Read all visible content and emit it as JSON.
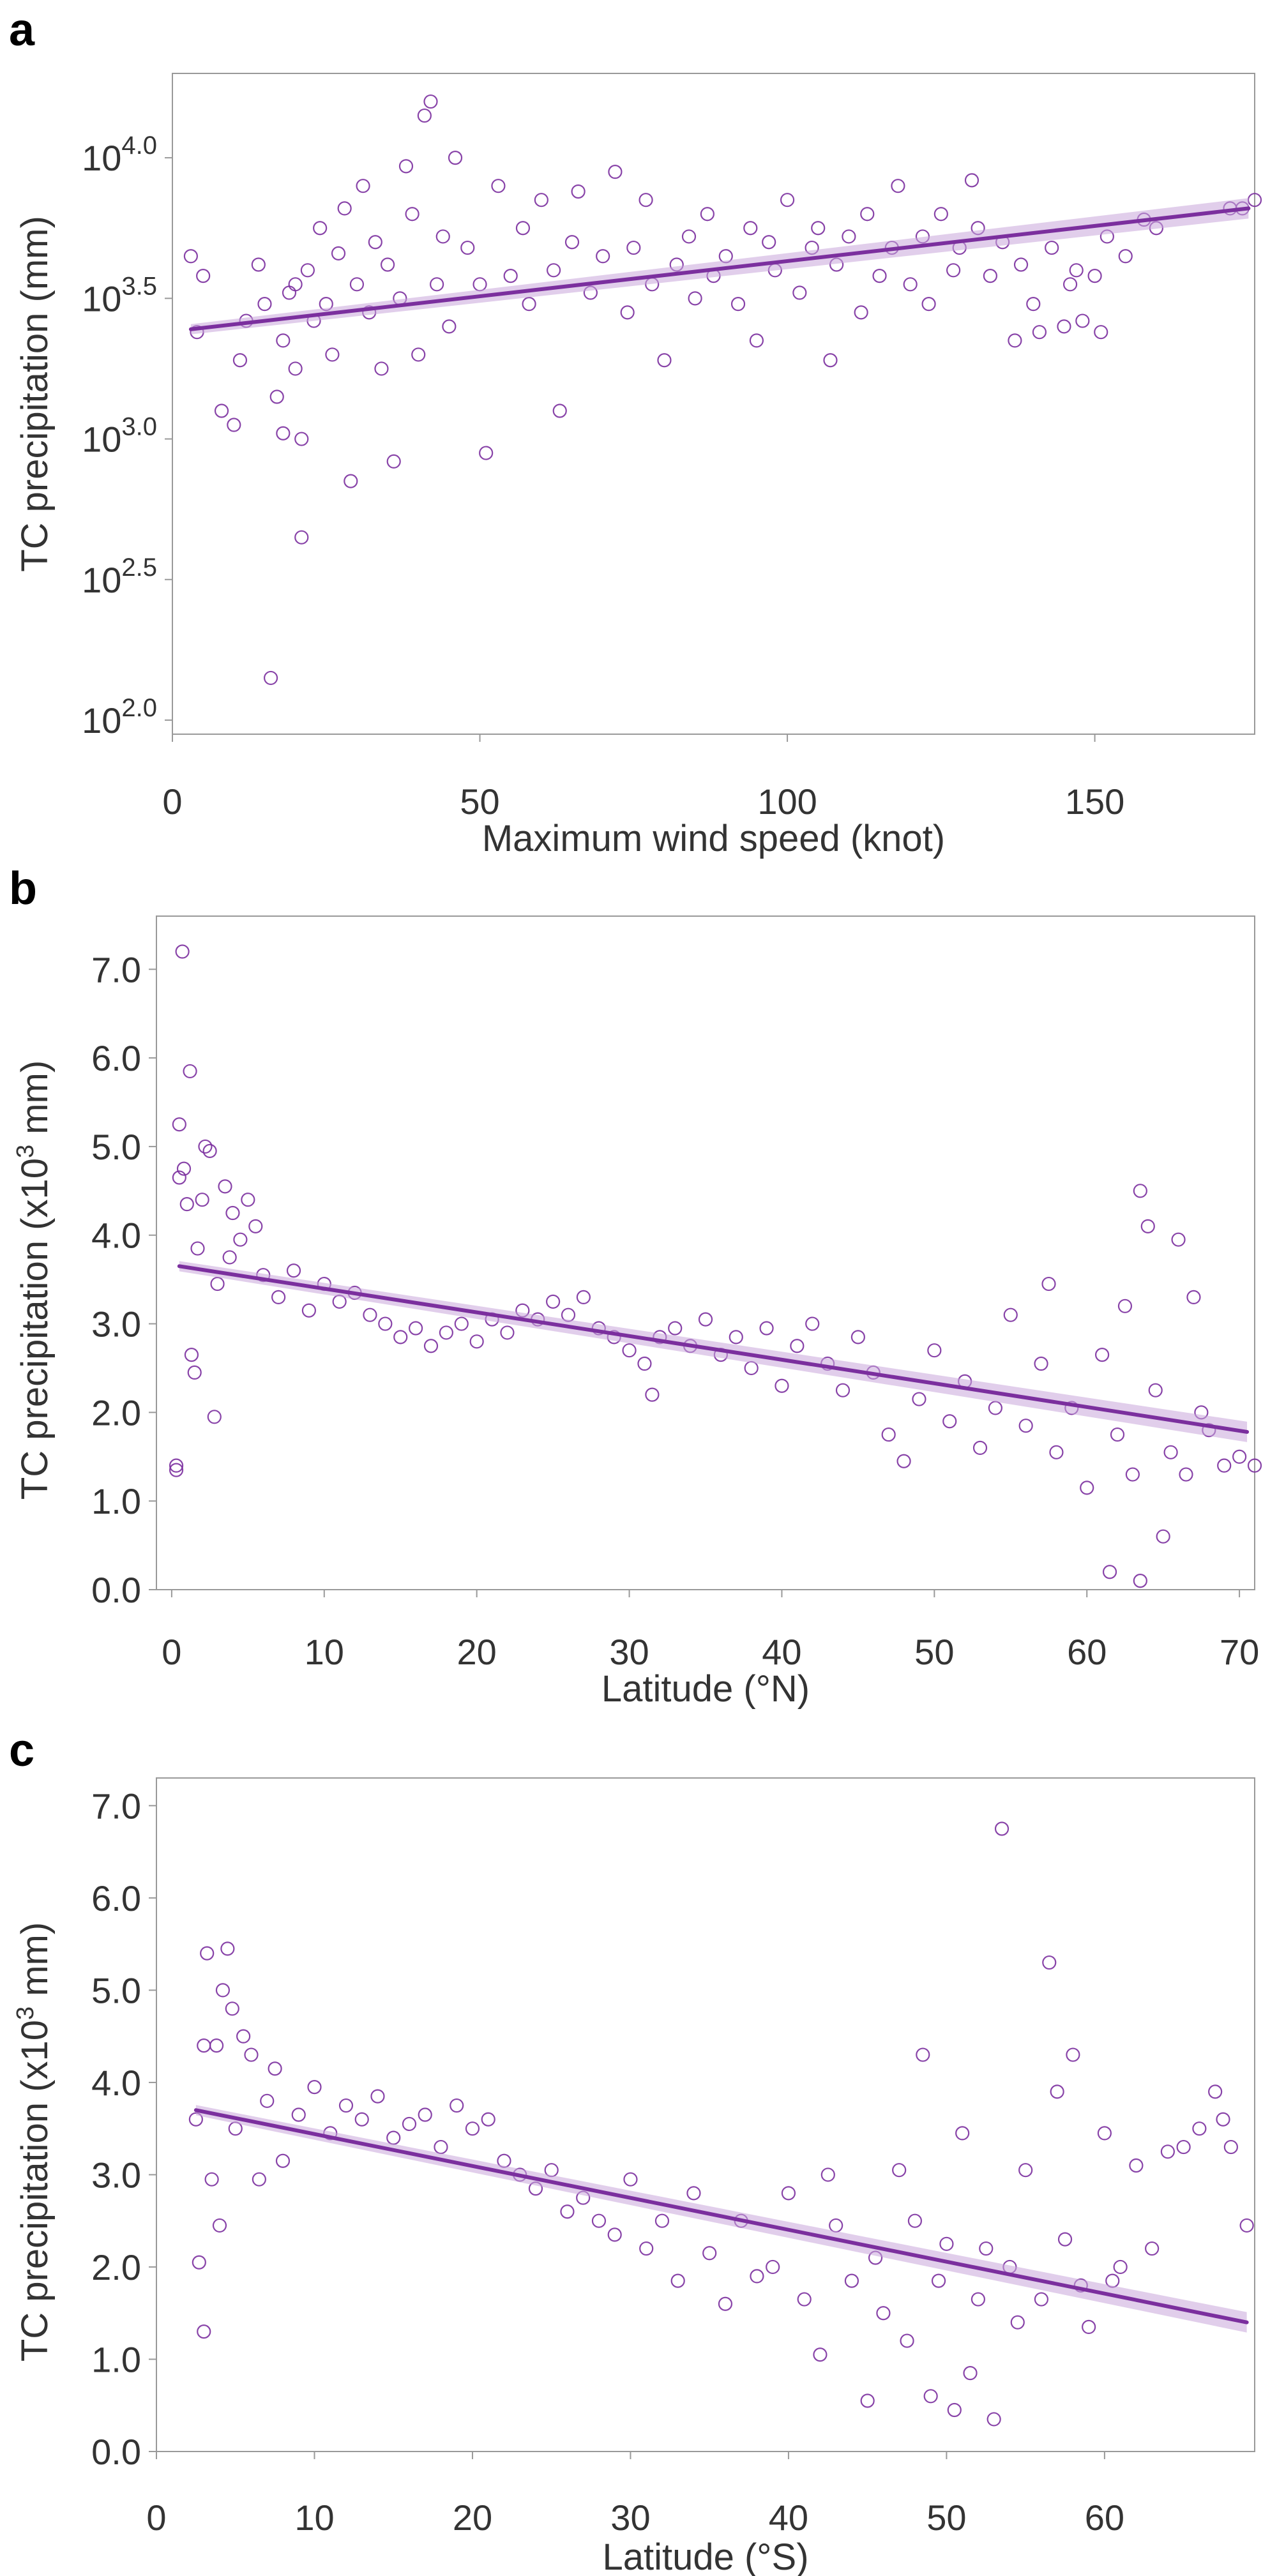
{
  "colors": {
    "accent": "#7B2F9E",
    "band": "#C9A6DA",
    "axis": "#999999",
    "text": "#333333"
  },
  "panels": [
    {
      "letter": "a"
    },
    {
      "letter": "b"
    },
    {
      "letter": "c"
    }
  ],
  "chart_data": [
    {
      "type": "scatter",
      "xlabel": "Maximum wind speed (knot)",
      "ylabel": "TC precipitation (mm)",
      "log_y": true,
      "xlim": [
        0,
        176
      ],
      "ylim": [
        1.95,
        4.3
      ],
      "xticks": [
        0,
        50,
        100,
        150
      ],
      "yticks": [
        2.0,
        2.5,
        3.0,
        3.5,
        4.0
      ],
      "ytick_labels": [
        "2.0",
        "2.5",
        "3.0",
        "3.5",
        "4.0"
      ],
      "grid": false,
      "trend_line": {
        "x": [
          3,
          175
        ],
        "y": [
          3.39,
          3.82
        ]
      },
      "points": [
        [
          3,
          3.65
        ],
        [
          4,
          3.38
        ],
        [
          5,
          3.58
        ],
        [
          8,
          3.1
        ],
        [
          10,
          3.05
        ],
        [
          11,
          3.28
        ],
        [
          12,
          3.42
        ],
        [
          14,
          3.62
        ],
        [
          15,
          3.48
        ],
        [
          16,
          2.15
        ],
        [
          17,
          3.15
        ],
        [
          18,
          3.35
        ],
        [
          18,
          3.02
        ],
        [
          19,
          3.52
        ],
        [
          20,
          3.25
        ],
        [
          20,
          3.55
        ],
        [
          21,
          2.65
        ],
        [
          21,
          3.0
        ],
        [
          22,
          3.6
        ],
        [
          23,
          3.42
        ],
        [
          24,
          3.75
        ],
        [
          25,
          3.48
        ],
        [
          26,
          3.3
        ],
        [
          27,
          3.66
        ],
        [
          28,
          3.82
        ],
        [
          29,
          2.85
        ],
        [
          30,
          3.55
        ],
        [
          31,
          3.9
        ],
        [
          32,
          3.45
        ],
        [
          33,
          3.7
        ],
        [
          34,
          3.25
        ],
        [
          35,
          3.62
        ],
        [
          36,
          2.92
        ],
        [
          37,
          3.5
        ],
        [
          38,
          3.97
        ],
        [
          39,
          3.8
        ],
        [
          40,
          3.3
        ],
        [
          41,
          4.15
        ],
        [
          42,
          4.2
        ],
        [
          43,
          3.55
        ],
        [
          44,
          3.72
        ],
        [
          45,
          3.4
        ],
        [
          46,
          4.0
        ],
        [
          48,
          3.68
        ],
        [
          50,
          3.55
        ],
        [
          51,
          2.95
        ],
        [
          53,
          3.9
        ],
        [
          55,
          3.58
        ],
        [
          57,
          3.75
        ],
        [
          58,
          3.48
        ],
        [
          60,
          3.85
        ],
        [
          62,
          3.6
        ],
        [
          63,
          3.1
        ],
        [
          65,
          3.7
        ],
        [
          66,
          3.88
        ],
        [
          68,
          3.52
        ],
        [
          70,
          3.65
        ],
        [
          72,
          3.95
        ],
        [
          74,
          3.45
        ],
        [
          75,
          3.68
        ],
        [
          77,
          3.85
        ],
        [
          78,
          3.55
        ],
        [
          80,
          3.28
        ],
        [
          82,
          3.62
        ],
        [
          84,
          3.72
        ],
        [
          85,
          3.5
        ],
        [
          87,
          3.8
        ],
        [
          88,
          3.58
        ],
        [
          90,
          3.65
        ],
        [
          92,
          3.48
        ],
        [
          94,
          3.75
        ],
        [
          95,
          3.35
        ],
        [
          97,
          3.7
        ],
        [
          98,
          3.6
        ],
        [
          100,
          3.85
        ],
        [
          102,
          3.52
        ],
        [
          104,
          3.68
        ],
        [
          105,
          3.75
        ],
        [
          107,
          3.28
        ],
        [
          108,
          3.62
        ],
        [
          110,
          3.72
        ],
        [
          112,
          3.45
        ],
        [
          113,
          3.8
        ],
        [
          115,
          3.58
        ],
        [
          117,
          3.68
        ],
        [
          118,
          3.9
        ],
        [
          120,
          3.55
        ],
        [
          122,
          3.72
        ],
        [
          123,
          3.48
        ],
        [
          125,
          3.8
        ],
        [
          127,
          3.6
        ],
        [
          128,
          3.68
        ],
        [
          130,
          3.92
        ],
        [
          131,
          3.75
        ],
        [
          133,
          3.58
        ],
        [
          135,
          3.7
        ],
        [
          137,
          3.35
        ],
        [
          138,
          3.62
        ],
        [
          140,
          3.48
        ],
        [
          141,
          3.38
        ],
        [
          143,
          3.68
        ],
        [
          145,
          3.4
        ],
        [
          146,
          3.55
        ],
        [
          147,
          3.6
        ],
        [
          148,
          3.42
        ],
        [
          150,
          3.58
        ],
        [
          151,
          3.38
        ],
        [
          152,
          3.72
        ],
        [
          155,
          3.65
        ],
        [
          158,
          3.78
        ],
        [
          160,
          3.75
        ],
        [
          172,
          3.82
        ],
        [
          174,
          3.82
        ],
        [
          176,
          3.85
        ]
      ]
    },
    {
      "type": "scatter",
      "xlabel": "Latitude (°N)",
      "ylabel": "TC precipitation (x10³ mm)",
      "xlim": [
        -1,
        71
      ],
      "ylim": [
        0,
        7.6
      ],
      "xticks": [
        0,
        10,
        20,
        30,
        40,
        50,
        60,
        70
      ],
      "yticks": [
        0,
        1,
        2,
        3,
        4,
        5,
        6,
        7
      ],
      "ytick_labels": [
        "0.0",
        "1.0",
        "2.0",
        "3.0",
        "4.0",
        "5.0",
        "6.0",
        "7.0"
      ],
      "grid": false,
      "trend_line": {
        "x": [
          0.5,
          70.5
        ],
        "y": [
          3.65,
          1.78
        ]
      },
      "points": [
        [
          0.3,
          1.35
        ],
        [
          0.3,
          1.4
        ],
        [
          0.5,
          5.25
        ],
        [
          0.5,
          4.65
        ],
        [
          0.7,
          7.2
        ],
        [
          0.8,
          4.75
        ],
        [
          1,
          4.35
        ],
        [
          1.2,
          5.85
        ],
        [
          1.3,
          2.65
        ],
        [
          1.5,
          2.45
        ],
        [
          1.7,
          3.85
        ],
        [
          2,
          4.4
        ],
        [
          2.2,
          5.0
        ],
        [
          2.5,
          4.95
        ],
        [
          2.8,
          1.95
        ],
        [
          3,
          3.45
        ],
        [
          3.5,
          4.55
        ],
        [
          3.8,
          3.75
        ],
        [
          4,
          4.25
        ],
        [
          4.5,
          3.95
        ],
        [
          5,
          4.4
        ],
        [
          5.5,
          4.1
        ],
        [
          6,
          3.55
        ],
        [
          7,
          3.3
        ],
        [
          8,
          3.6
        ],
        [
          9,
          3.15
        ],
        [
          10,
          3.45
        ],
        [
          11,
          3.25
        ],
        [
          12,
          3.35
        ],
        [
          13,
          3.1
        ],
        [
          14,
          3.0
        ],
        [
          15,
          2.85
        ],
        [
          16,
          2.95
        ],
        [
          17,
          2.75
        ],
        [
          18,
          2.9
        ],
        [
          19,
          3.0
        ],
        [
          20,
          2.8
        ],
        [
          21,
          3.05
        ],
        [
          22,
          2.9
        ],
        [
          23,
          3.15
        ],
        [
          24,
          3.05
        ],
        [
          25,
          3.25
        ],
        [
          26,
          3.1
        ],
        [
          27,
          3.3
        ],
        [
          28,
          2.95
        ],
        [
          29,
          2.85
        ],
        [
          30,
          2.7
        ],
        [
          31,
          2.55
        ],
        [
          31.5,
          2.2
        ],
        [
          32,
          2.85
        ],
        [
          33,
          2.95
        ],
        [
          34,
          2.75
        ],
        [
          35,
          3.05
        ],
        [
          36,
          2.65
        ],
        [
          37,
          2.85
        ],
        [
          38,
          2.5
        ],
        [
          39,
          2.95
        ],
        [
          40,
          2.3
        ],
        [
          41,
          2.75
        ],
        [
          42,
          3.0
        ],
        [
          43,
          2.55
        ],
        [
          44,
          2.25
        ],
        [
          45,
          2.85
        ],
        [
          46,
          2.45
        ],
        [
          47,
          1.75
        ],
        [
          48,
          1.45
        ],
        [
          49,
          2.15
        ],
        [
          50,
          2.7
        ],
        [
          51,
          1.9
        ],
        [
          52,
          2.35
        ],
        [
          53,
          1.6
        ],
        [
          54,
          2.05
        ],
        [
          55,
          3.1
        ],
        [
          56,
          1.85
        ],
        [
          57,
          2.55
        ],
        [
          57.5,
          3.45
        ],
        [
          58,
          1.55
        ],
        [
          59,
          2.05
        ],
        [
          60,
          1.15
        ],
        [
          61,
          2.65
        ],
        [
          61.5,
          0.2
        ],
        [
          62,
          1.75
        ],
        [
          62.5,
          3.2
        ],
        [
          63,
          1.3
        ],
        [
          63.5,
          0.1
        ],
        [
          63.5,
          4.5
        ],
        [
          64,
          4.1
        ],
        [
          64.5,
          2.25
        ],
        [
          65,
          0.6
        ],
        [
          65.5,
          1.55
        ],
        [
          66,
          3.95
        ],
        [
          66.5,
          1.3
        ],
        [
          67,
          3.3
        ],
        [
          67.5,
          2.0
        ],
        [
          68,
          1.8
        ],
        [
          69,
          1.4
        ],
        [
          70,
          1.5
        ],
        [
          71,
          1.4
        ]
      ]
    },
    {
      "type": "scatter",
      "xlabel": "Latitude (°S)",
      "ylabel": "TC precipitation (x10³ mm)",
      "xlim": [
        0,
        69.5
      ],
      "ylim": [
        0,
        7.3
      ],
      "xticks": [
        0,
        10,
        20,
        30,
        40,
        50,
        60
      ],
      "yticks": [
        0,
        1,
        2,
        3,
        4,
        5,
        6,
        7
      ],
      "ytick_labels": [
        "0.0",
        "1.0",
        "2.0",
        "3.0",
        "4.0",
        "5.0",
        "6.0",
        "7.0"
      ],
      "grid": false,
      "trend_line": {
        "x": [
          2.5,
          69
        ],
        "y": [
          3.7,
          1.4
        ]
      },
      "points": [
        [
          2.5,
          3.6
        ],
        [
          2.7,
          2.05
        ],
        [
          3,
          1.3
        ],
        [
          3,
          4.4
        ],
        [
          3.2,
          5.4
        ],
        [
          3.5,
          2.95
        ],
        [
          3.8,
          4.4
        ],
        [
          4,
          2.45
        ],
        [
          4.2,
          5.0
        ],
        [
          4.5,
          5.45
        ],
        [
          4.8,
          4.8
        ],
        [
          5,
          3.5
        ],
        [
          5.5,
          4.5
        ],
        [
          6,
          4.3
        ],
        [
          6.5,
          2.95
        ],
        [
          7,
          3.8
        ],
        [
          7.5,
          4.15
        ],
        [
          8,
          3.15
        ],
        [
          9,
          3.65
        ],
        [
          10,
          3.95
        ],
        [
          11,
          3.45
        ],
        [
          12,
          3.75
        ],
        [
          13,
          3.6
        ],
        [
          14,
          3.85
        ],
        [
          15,
          3.4
        ],
        [
          16,
          3.55
        ],
        [
          17,
          3.65
        ],
        [
          18,
          3.3
        ],
        [
          19,
          3.75
        ],
        [
          20,
          3.5
        ],
        [
          21,
          3.6
        ],
        [
          22,
          3.15
        ],
        [
          23,
          3.0
        ],
        [
          24,
          2.85
        ],
        [
          25,
          3.05
        ],
        [
          26,
          2.6
        ],
        [
          27,
          2.75
        ],
        [
          28,
          2.5
        ],
        [
          29,
          2.35
        ],
        [
          30,
          2.95
        ],
        [
          31,
          2.2
        ],
        [
          32,
          2.5
        ],
        [
          33,
          1.85
        ],
        [
          34,
          2.8
        ],
        [
          35,
          2.15
        ],
        [
          36,
          1.6
        ],
        [
          37,
          2.5
        ],
        [
          38,
          1.9
        ],
        [
          39,
          2.0
        ],
        [
          40,
          2.8
        ],
        [
          41,
          1.65
        ],
        [
          42,
          1.05
        ],
        [
          42.5,
          3.0
        ],
        [
          43,
          2.45
        ],
        [
          44,
          1.85
        ],
        [
          45,
          0.55
        ],
        [
          45.5,
          2.1
        ],
        [
          46,
          1.5
        ],
        [
          47,
          3.05
        ],
        [
          47.5,
          1.2
        ],
        [
          48,
          2.5
        ],
        [
          48.5,
          4.3
        ],
        [
          49,
          0.6
        ],
        [
          49.5,
          1.85
        ],
        [
          50,
          2.25
        ],
        [
          50.5,
          0.45
        ],
        [
          51,
          3.45
        ],
        [
          51.5,
          0.85
        ],
        [
          52,
          1.65
        ],
        [
          52.5,
          2.2
        ],
        [
          53,
          0.35
        ],
        [
          53.5,
          6.75
        ],
        [
          54,
          2.0
        ],
        [
          54.5,
          1.4
        ],
        [
          55,
          3.05
        ],
        [
          56,
          1.65
        ],
        [
          56.5,
          5.3
        ],
        [
          57,
          3.9
        ],
        [
          57.5,
          2.3
        ],
        [
          58,
          4.3
        ],
        [
          58.5,
          1.8
        ],
        [
          59,
          1.35
        ],
        [
          60,
          3.45
        ],
        [
          60.5,
          1.85
        ],
        [
          61,
          2.0
        ],
        [
          62,
          3.1
        ],
        [
          63,
          2.2
        ],
        [
          64,
          3.25
        ],
        [
          65,
          3.3
        ],
        [
          66,
          3.5
        ],
        [
          67,
          3.9
        ],
        [
          67.5,
          3.6
        ],
        [
          68,
          3.3
        ],
        [
          69,
          2.45
        ]
      ]
    }
  ]
}
